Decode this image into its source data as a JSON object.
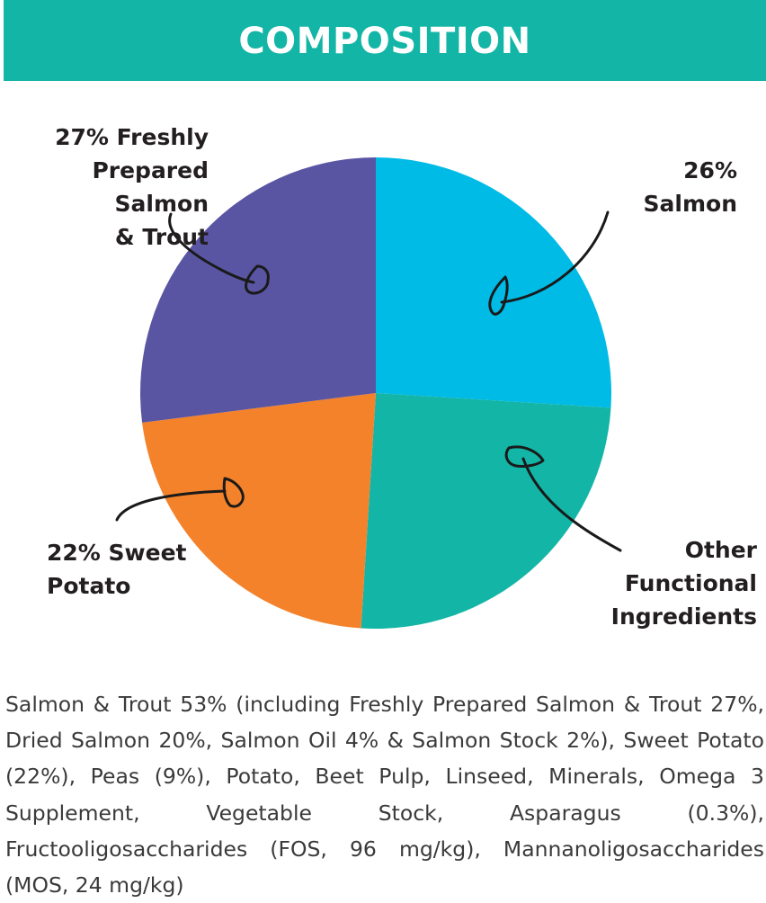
{
  "header": {
    "title": "COMPOSITION",
    "bar_color": "#13b5a6"
  },
  "chart_data": {
    "type": "pie",
    "title": "",
    "slices": [
      {
        "label": "26% Salmon",
        "value": 26,
        "color": "#00bbe6"
      },
      {
        "label": "Other Functional Ingredients",
        "value": 25,
        "color": "#13b5a6"
      },
      {
        "label": "22% Sweet Potato",
        "value": 22,
        "color": "#f4822a"
      },
      {
        "label": "27% Freshly Prepared Salmon & Trout",
        "value": 27,
        "color": "#5955a3"
      }
    ],
    "start": "12 o'clock",
    "direction": "clockwise",
    "label_style": "outside labels with hand-drawn arrows"
  },
  "labels": {
    "salmon": "26% Salmon",
    "other": "Other\nFunctional\nIngredients",
    "sweet_potato": "22% Sweet\nPotato",
    "fresh": "27% Freshly\nPrepared Salmon\n& Trout"
  },
  "ingredients": {
    "text": "Salmon & Trout 53% (including Freshly Prepared Salmon & Trout 27%, Dried Salmon 20%, Salmon Oil 4% & Salmon Stock 2%), Sweet Potato (22%), Peas (9%), Potato, Beet Pulp, Linseed, Minerals, Omega 3 Supplement, Vegetable Stock, Asparagus (0.3%),  Fructooligosaccharides (FOS, 96 mg/kg), Mannanoligosaccharides (MOS, 24 mg/kg)"
  }
}
